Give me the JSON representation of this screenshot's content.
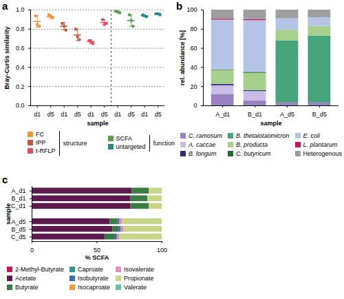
{
  "chart_data": [
    {
      "type": "scatter",
      "title": "a",
      "x_label": "sample",
      "y_label": "Bray-Curtis similarity",
      "categories": [
        "d1",
        "d5",
        "d1",
        "d5",
        "d1",
        "d5",
        "d1",
        "d5",
        "d1",
        "d5"
      ],
      "ylim": [
        0,
        1
      ],
      "yticks": [
        {
          "value": 0,
          "label": "0.0"
        },
        {
          "value": 0.2,
          "label": "0.2"
        },
        {
          "value": 0.4,
          "label": "0.4"
        },
        {
          "value": 0.6,
          "label": "0.6"
        },
        {
          "value": 0.8,
          "label": "0.8"
        },
        {
          "value": 1,
          "label": "1.0"
        }
      ],
      "grid": true,
      "series": [
        {
          "name": "FC",
          "group": "structure",
          "color": "#f39237",
          "values": [
            0.88,
            0.93,
            null,
            null,
            null,
            null,
            null,
            null,
            null,
            null
          ],
          "error": [
            0.06,
            0.02,
            null,
            null,
            null,
            null,
            null,
            null,
            null,
            null
          ],
          "points": [
            [
              0.94,
              0.85,
              0.83
            ],
            [
              0.95,
              0.93,
              0.92
            ],
            null,
            null,
            null,
            null,
            null,
            null,
            null,
            null
          ]
        },
        {
          "name": "IPP",
          "group": "structure",
          "color": "#c8553d",
          "values": [
            null,
            null,
            0.83,
            0.74,
            null,
            null,
            null,
            null,
            null,
            null
          ],
          "error": [
            null,
            null,
            0.04,
            0.06,
            null,
            null,
            null,
            null,
            null,
            null
          ],
          "points": [
            null,
            null,
            [
              0.86,
              0.83,
              0.79
            ],
            [
              0.8,
              0.72,
              0.69
            ],
            null,
            null,
            null,
            null,
            null,
            null
          ]
        },
        {
          "name": "t-RFLP",
          "group": "structure",
          "color": "#e84a5f",
          "values": [
            null,
            null,
            null,
            null,
            0.67,
            0.87,
            null,
            null,
            null,
            null
          ],
          "error": [
            null,
            null,
            null,
            null,
            0.02,
            0.03,
            null,
            null,
            null,
            null
          ],
          "points": [
            null,
            null,
            null,
            null,
            [
              0.68,
              0.67,
              0.65
            ],
            [
              0.9,
              0.85,
              0.86
            ],
            null,
            null,
            null,
            null
          ]
        },
        {
          "name": "SCFA",
          "group": "function",
          "color": "#5a9e4b",
          "values": [
            null,
            null,
            null,
            null,
            null,
            null,
            0.98,
            0.89,
            null,
            null
          ],
          "error": [
            null,
            null,
            null,
            null,
            null,
            null,
            0.01,
            0.06,
            null,
            null
          ],
          "points": [
            null,
            null,
            null,
            null,
            null,
            null,
            [
              0.99,
              0.98,
              0.97
            ],
            [
              0.95,
              0.89,
              0.83
            ],
            null,
            null
          ]
        },
        {
          "name": "untargeted",
          "group": "function",
          "color": "#2a8a8a",
          "values": [
            null,
            null,
            null,
            null,
            null,
            null,
            null,
            null,
            0.94,
            0.96
          ],
          "error": [
            null,
            null,
            null,
            null,
            null,
            null,
            null,
            null,
            0.01,
            0.01
          ],
          "points": [
            null,
            null,
            null,
            null,
            null,
            null,
            null,
            null,
            [
              0.95,
              0.94,
              0.93
            ],
            [
              0.96,
              0.96,
              0.95
            ]
          ]
        }
      ]
    },
    {
      "type": "bar",
      "title": "b",
      "stacked": true,
      "x_label": "sample",
      "y_label": "rel. abundance [%]",
      "categories": [
        "A_d1",
        "B_d1",
        "A_d5",
        "B_d5"
      ],
      "ylim": [
        0,
        100
      ],
      "yticks": [
        0,
        20,
        40,
        60,
        80,
        100
      ],
      "series": [
        {
          "name": "C. ramosum",
          "color": "#9b7fc4",
          "values": [
            12,
            5,
            3,
            3
          ]
        },
        {
          "name": "A. caccae",
          "color": "#c9bde6",
          "values": [
            9,
            10,
            0,
            0
          ]
        },
        {
          "name": "B. longum",
          "color": "#2b2f7a",
          "values": [
            1.5,
            1,
            0,
            0
          ]
        },
        {
          "name": "B. thetaiotaomicron",
          "color": "#45a47c",
          "values": [
            0,
            0,
            65,
            70
          ]
        },
        {
          "name": "B. producta",
          "color": "#a8d08d",
          "values": [
            14.5,
            18,
            11,
            10
          ]
        },
        {
          "name": "C. butyricum",
          "color": "#1b6e3c",
          "values": [
            0.5,
            1,
            0,
            0
          ]
        },
        {
          "name": "E. coli",
          "color": "#b4c3e6",
          "values": [
            52,
            54,
            12,
            9
          ]
        },
        {
          "name": "L. plantarum",
          "color": "#c2185b",
          "values": [
            1,
            1,
            0,
            0
          ]
        },
        {
          "name": "Heterogenous",
          "color": "#9e9e9e",
          "values": [
            9.5,
            10,
            9,
            8
          ]
        }
      ]
    },
    {
      "type": "bar",
      "title": "c",
      "stacked": true,
      "orientation": "horizontal",
      "x_label": "% SCFA",
      "y_label": "sample",
      "categories": [
        "A_d1",
        "B_d1",
        "C_d1",
        "A_d5",
        "B_d5",
        "C_d5"
      ],
      "xlim": [
        0,
        100
      ],
      "xticks": [
        0,
        50,
        100
      ],
      "series": [
        {
          "name": "2-Methyl-Butyrate",
          "color": "#c2185b",
          "values": [
            0,
            0,
            0,
            0,
            0,
            0
          ]
        },
        {
          "name": "Acetate",
          "color": "#5c1a4e",
          "values": [
            77,
            76,
            76,
            60,
            62,
            56
          ]
        },
        {
          "name": "Butyrate",
          "color": "#3a7d44",
          "values": [
            13,
            13,
            14,
            6,
            5,
            8
          ]
        },
        {
          "name": "Caproate",
          "color": "#2a9d8f",
          "values": [
            0,
            0,
            0,
            0,
            0,
            0
          ]
        },
        {
          "name": "Isobutyrate",
          "color": "#3b6ea8",
          "values": [
            0,
            0,
            0,
            1.5,
            1.5,
            1.5
          ]
        },
        {
          "name": "Isocaproate",
          "color": "#f39c34",
          "values": [
            0,
            0,
            0,
            0,
            0,
            0
          ]
        },
        {
          "name": "Isovalerate",
          "color": "#e78ac3",
          "values": [
            0,
            0,
            0,
            2,
            2,
            2
          ]
        },
        {
          "name": "Propionate",
          "color": "#c5d686",
          "values": [
            10,
            11,
            10,
            30.5,
            29.5,
            32.5
          ]
        },
        {
          "name": "Valerate",
          "color": "#66c2a5",
          "values": [
            0,
            0,
            0,
            0,
            0,
            0
          ]
        }
      ]
    }
  ]
}
